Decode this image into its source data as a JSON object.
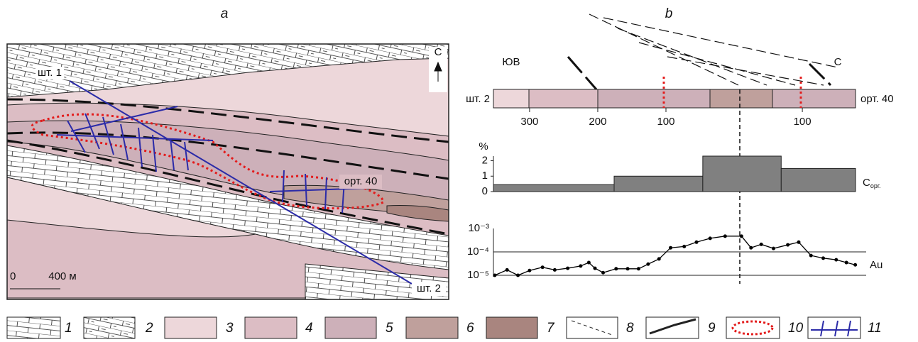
{
  "panel_a": {
    "label": "а",
    "north": "С",
    "labels": [
      "шт. 1",
      "орт. 40",
      "шт. 2"
    ],
    "scale": [
      "0",
      "400 м"
    ]
  },
  "panel_b": {
    "label": "b",
    "left_end": "ЮВ",
    "right_end": "С",
    "left_name": "шт. 2",
    "right_name": "орт. 40"
  },
  "chart_data": [
    {
      "type": "histogram",
      "y_axis_label": "%",
      "series_label": {
        "main": "C",
        "sub": "орг."
      },
      "color": "#808080",
      "bins": [
        -353,
        -176,
        -46,
        69,
        178
      ],
      "values": [
        0.45,
        1.0,
        2.3,
        1.5
      ],
      "xlim": [
        -353,
        178
      ],
      "xticks": [
        {
          "value": -300,
          "label": "300"
        },
        {
          "value": -200,
          "label": "200"
        },
        {
          "value": -100,
          "label": "100"
        },
        {
          "value": 100,
          "label": "100"
        }
      ],
      "ylim": [
        0,
        2.3
      ],
      "yticks": [
        0,
        1,
        2
      ]
    },
    {
      "type": "line",
      "log_scale": true,
      "color": "#000000",
      "series_label": "Au",
      "x": [
        -351,
        -333,
        -317,
        -300,
        -281,
        -263,
        -244,
        -225,
        -213,
        -204,
        -192,
        -173,
        -156,
        -140,
        -126,
        -110,
        -93,
        -73,
        -55,
        -35,
        -13,
        11,
        25,
        40,
        58,
        79,
        95,
        113,
        131,
        150,
        165,
        178
      ],
      "values": [
        1e-05,
        1.7e-05,
        1e-05,
        1.6e-05,
        2.2e-05,
        1.7e-05,
        2e-05,
        2.5e-05,
        3.5e-05,
        2e-05,
        1.3e-05,
        1.9e-05,
        1.9e-05,
        1.9e-05,
        3e-05,
        5e-05,
        0.00015,
        0.00017,
        0.00026,
        0.00038,
        0.00047,
        0.00047,
        0.00015,
        0.00021,
        0.00014,
        0.0002,
        0.00026,
        7e-05,
        5.4e-05,
        4.6e-05,
        3.5e-05,
        2.8e-05
      ],
      "xlim": [
        -353,
        194
      ],
      "ylim": [
        1e-05,
        0.001
      ],
      "yticks": [
        {
          "value": 1e-05,
          "label": "10⁻⁵"
        },
        {
          "value": 0.0001,
          "label": "10⁻⁴"
        },
        {
          "value": 0.001,
          "label": "10⁻³"
        }
      ]
    }
  ],
  "legend": [
    "1",
    "2",
    "3",
    "4",
    "5",
    "6",
    "7",
    "8",
    "9",
    "10",
    "11"
  ]
}
